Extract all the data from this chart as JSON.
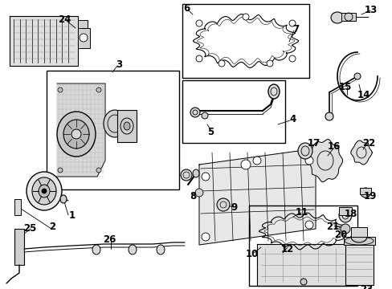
{
  "bg_color": "#ffffff",
  "line_color": "#000000",
  "fig_width": 4.89,
  "fig_height": 3.6,
  "dpi": 100,
  "label_fontsize": 8.5
}
